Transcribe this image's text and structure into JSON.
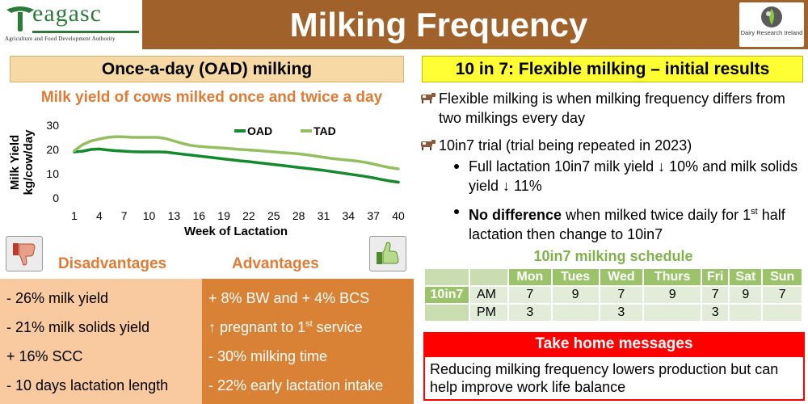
{
  "header": {
    "logo_name": "eagasc",
    "logo_tagline": "Agriculture and Food Development Authority",
    "title": "Milking Frequency",
    "partner_name": "Dairy Research Ireland"
  },
  "left": {
    "heading": "Once-a-day (OAD) milking",
    "disadvantages_heading": "Disadvantages",
    "advantages_heading": "Advantages",
    "disadvantages": [
      "- 26% milk yield",
      "- 21% milk solids yield",
      "+ 16% SCC",
      "- 10 days lactation length"
    ],
    "advantages": [
      "+ 8% BW and + 4% BCS",
      "- 30%  milking time",
      "- 22% early lactation intake"
    ],
    "advantage_pregnant": {
      "prefix": "↑ pregnant to 1",
      "sup": "st",
      "suffix": " service"
    }
  },
  "chart_data": {
    "type": "line",
    "title": "Milk yield of cows milked once and twice a day",
    "xlabel": "Week of Lactation",
    "ylabel": "Milk Yield kg/cow/day",
    "ylim": [
      0,
      30
    ],
    "yticks": [
      0,
      10,
      20,
      30
    ],
    "xlim": [
      1,
      40
    ],
    "xticks": [
      1,
      4,
      7,
      10,
      13,
      16,
      19,
      22,
      25,
      28,
      31,
      34,
      37,
      40
    ],
    "legend_position": "top-right",
    "grid": false,
    "x": [
      1,
      2,
      3,
      4,
      5,
      6,
      7,
      8,
      9,
      10,
      11,
      12,
      13,
      14,
      15,
      16,
      17,
      18,
      19,
      20,
      21,
      22,
      23,
      24,
      25,
      26,
      27,
      28,
      29,
      30,
      31,
      32,
      33,
      34,
      35,
      36,
      37,
      38,
      39,
      40
    ],
    "series": [
      {
        "name": "OAD",
        "color": "#138a2e",
        "values": [
          19,
          19.3,
          20,
          20.2,
          19.8,
          19.5,
          19.3,
          19.1,
          19,
          19,
          19,
          18.9,
          18.5,
          18.1,
          17.7,
          17.3,
          16.9,
          16.5,
          16.1,
          15.7,
          15.3,
          15,
          14.6,
          14.2,
          13.8,
          13.4,
          13,
          12.6,
          12.2,
          11.8,
          11.4,
          10.9,
          10.4,
          9.9,
          9.4,
          8.9,
          8.3,
          7.6,
          7,
          6.5
        ]
      },
      {
        "name": "TAD",
        "color": "#94bf5f",
        "values": [
          19.5,
          22,
          23.5,
          24.3,
          25,
          25.3,
          25.2,
          25,
          25,
          25,
          25,
          24.5,
          23.5,
          22.5,
          21.7,
          21.3,
          21,
          20.8,
          20.6,
          20.3,
          20,
          19.8,
          19.6,
          19.3,
          19,
          18.7,
          18.5,
          18.2,
          17.8,
          17.3,
          16.8,
          16.3,
          15.9,
          15.6,
          15.2,
          14.7,
          14,
          13.2,
          12.5,
          12
        ]
      }
    ]
  },
  "right": {
    "heading": "10 in 7: Flexible milking – initial results",
    "bullet1": "Flexible milking is when milking frequency differs from two milkings every day",
    "bullet2": "10in7 trial (trial being repeated in 2023)",
    "sub1": "Full lactation 10in7 milk yield ↓ 10% and milk solids yield ↓ 11%",
    "sub2_bold": "No difference",
    "sub2_text": " when milked twice daily for 1",
    "sub2_sup": "st",
    "sub2_text2": " half lactation then change to 10in7"
  },
  "schedule": {
    "title": "10in7 milking schedule",
    "days": [
      "Mon",
      "Tues",
      "Wed",
      "Thurs",
      "Fri",
      "Sat",
      "Sun"
    ],
    "row_label": "10in7",
    "am_label": "AM",
    "pm_label": "PM",
    "am": [
      "7",
      "9",
      "7",
      "9",
      "7",
      "9",
      "7"
    ],
    "pm": [
      "3",
      "",
      "3",
      "",
      "3",
      "",
      ""
    ]
  },
  "take_home": {
    "heading": "Take home messages",
    "message": "Reducing milking frequency lowers production but can help improve work life balance"
  },
  "colors": {
    "brown": "#a0612a",
    "orange": "#e07b35",
    "yellow": "#ffff33",
    "red": "#ff0000",
    "oad": "#138a2e",
    "tad": "#94bf5f"
  },
  "icons": [
    "teagasc-logo-icon",
    "dairy-research-ireland-logo-icon",
    "thumbs-down-icon",
    "thumbs-up-icon",
    "cow-bullet-icon"
  ]
}
